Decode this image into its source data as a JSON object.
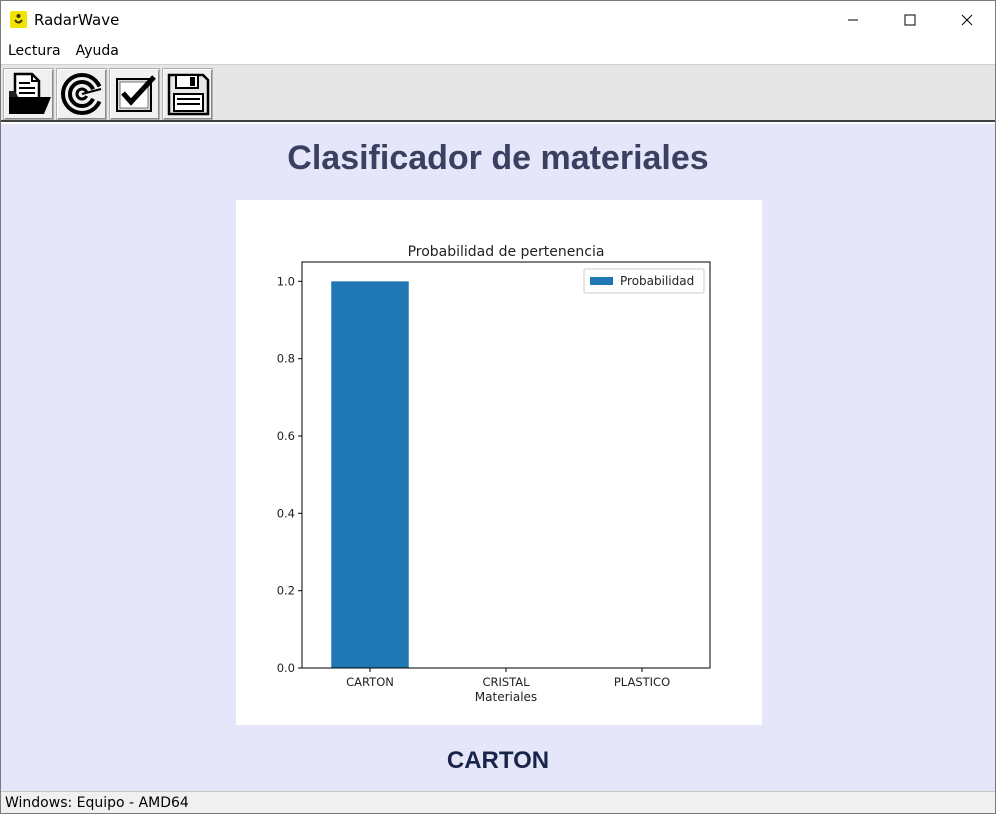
{
  "window": {
    "title": "RadarWave",
    "icon": "radar-app-icon",
    "controls": [
      "minimize-icon",
      "maximize-icon",
      "close-icon"
    ]
  },
  "menu": {
    "items": [
      {
        "label": "Lectura"
      },
      {
        "label": "Ayuda"
      }
    ]
  },
  "toolbar": {
    "buttons": [
      {
        "icon": "open-folder-icon"
      },
      {
        "icon": "radar-scan-icon"
      },
      {
        "icon": "checkmark-icon"
      },
      {
        "icon": "save-disk-icon"
      }
    ]
  },
  "main": {
    "title": "Clasificador de materiales",
    "result": "CARTON"
  },
  "chart_data": {
    "type": "bar",
    "title": "Probabilidad de pertenencia",
    "xlabel": "Materiales",
    "ylabel": "",
    "categories": [
      "CARTON",
      "CRISTAL",
      "PLASTICO"
    ],
    "series": [
      {
        "name": "Probabilidad",
        "values": [
          1.0,
          0.0,
          0.0
        ],
        "color": "#1f77b4"
      }
    ],
    "ylim": [
      0,
      1.05
    ],
    "yticks": [
      0.0,
      0.2,
      0.4,
      0.6,
      0.8,
      1.0
    ],
    "ytick_labels": [
      "0.0",
      "0.2",
      "0.4",
      "0.6",
      "0.8",
      "1.0"
    ],
    "legend": "top-right",
    "grid": false
  },
  "status": {
    "text": "Windows: Equipo - AMD64"
  }
}
